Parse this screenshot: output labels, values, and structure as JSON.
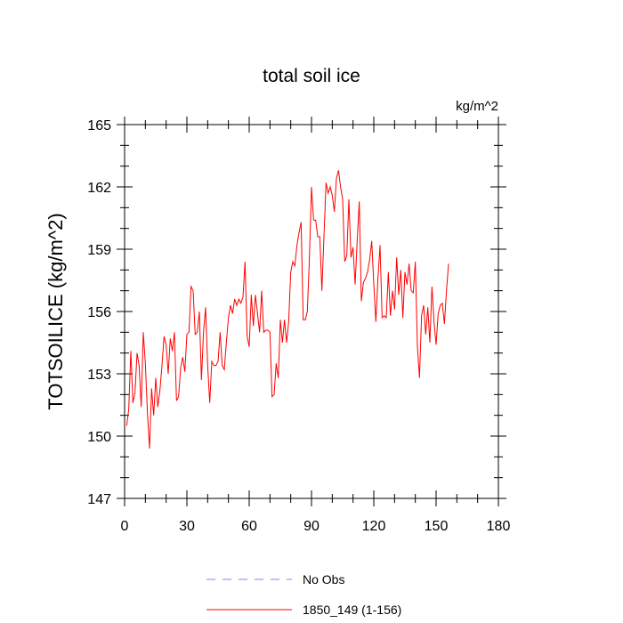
{
  "chart_data": {
    "type": "line",
    "title": "total soil ice",
    "units": "kg/m^2",
    "xlabel": "",
    "ylabel": "TOTSOILICE  (kg/m^2)",
    "xlim": [
      0,
      180
    ],
    "ylim": [
      147,
      165
    ],
    "xticks": [
      0,
      30,
      60,
      90,
      120,
      150,
      180
    ],
    "yticks": [
      147,
      150,
      153,
      156,
      159,
      162,
      165
    ],
    "grid": false,
    "legend_position": "bottom",
    "legend": [
      {
        "label": "No Obs",
        "color": "#8080ff",
        "style": "dashed"
      },
      {
        "label": "1850_149 (1-156)",
        "color": "#ff0000",
        "style": "solid"
      }
    ],
    "series": [
      {
        "name": "1850_149 (1-156)",
        "color": "#ff0000",
        "x_start": 1,
        "values": [
          150.5,
          151.3,
          154.1,
          151.6,
          152.1,
          154.0,
          153.4,
          151.4,
          155.0,
          153.5,
          151.1,
          149.4,
          152.3,
          151.0,
          152.8,
          151.4,
          152.2,
          153.4,
          154.8,
          154.4,
          153.0,
          154.7,
          154.1,
          155.0,
          151.7,
          151.9,
          153.3,
          153.8,
          153.1,
          154.9,
          155.0,
          157.2,
          157.0,
          154.9,
          155.0,
          156.0,
          152.7,
          155.0,
          156.2,
          153.4,
          151.6,
          153.6,
          153.4,
          153.4,
          153.6,
          155.0,
          153.4,
          153.2,
          154.5,
          155.7,
          156.3,
          155.9,
          156.6,
          156.3,
          156.6,
          156.4,
          156.7,
          158.4,
          154.8,
          154.3,
          156.8,
          155.3,
          156.8,
          155.9,
          155.0,
          157.0,
          155.0,
          155.1,
          155.1,
          155.0,
          151.9,
          152.0,
          153.5,
          152.8,
          155.6,
          154.5,
          155.6,
          154.5,
          155.5,
          157.9,
          158.4,
          158.2,
          159.2,
          159.8,
          160.3,
          155.6,
          155.6,
          156.0,
          158.6,
          162.0,
          160.4,
          160.4,
          159.6,
          159.6,
          157.0,
          159.6,
          162.2,
          161.7,
          162.0,
          161.6,
          160.8,
          162.4,
          162.8,
          162.0,
          161.4,
          158.4,
          158.7,
          161.4,
          158.6,
          159.1,
          157.3,
          159.4,
          161.3,
          156.5,
          157.4,
          157.6,
          157.9,
          158.5,
          159.4,
          157.3,
          155.5,
          157.6,
          159.2,
          155.7,
          155.8,
          155.7,
          157.9,
          155.8,
          157.0,
          156.1,
          158.6,
          156.8,
          158.0,
          155.7,
          157.9,
          157.3,
          158.3,
          157.0,
          156.9,
          158.4,
          154.3,
          152.8,
          155.8,
          156.3,
          154.9,
          156.2,
          154.5,
          157.2,
          155.5,
          154.4,
          155.9,
          156.3,
          156.4,
          155.4,
          157.0,
          158.3
        ]
      }
    ]
  }
}
